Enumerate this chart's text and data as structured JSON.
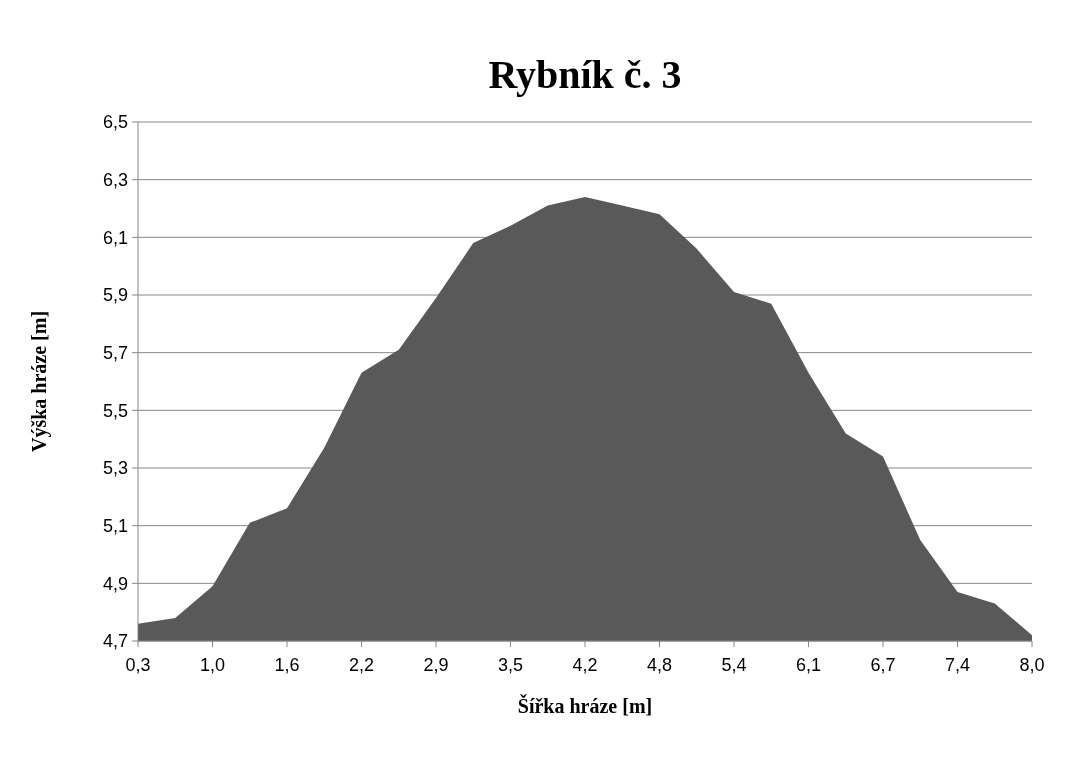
{
  "chart_data": {
    "type": "area",
    "title": "Rybník č. 3",
    "xlabel": "Šířka hráze [m]",
    "ylabel": "Výška hráze [m]",
    "categories": [
      "0,3",
      null,
      "1,0",
      null,
      "1,6",
      null,
      "2,2",
      null,
      "2,9",
      null,
      "3,5",
      null,
      "4,2",
      null,
      "4,8",
      null,
      "5,4",
      null,
      "6,1",
      null,
      "6,7",
      null,
      "7,4",
      null,
      "8,0"
    ],
    "series": [
      {
        "color": "#595959",
        "values": [
          4.76,
          4.78,
          4.89,
          5.11,
          5.16,
          5.37,
          5.63,
          5.71,
          5.89,
          6.08,
          6.14,
          6.21,
          6.24,
          6.21,
          6.18,
          6.06,
          5.91,
          5.87,
          5.63,
          5.42,
          5.34,
          5.05,
          4.87,
          4.83,
          4.72
        ]
      }
    ],
    "ylim": [
      4.7,
      6.5
    ],
    "yticks": [
      {
        "value": 4.7,
        "label": "4,7"
      },
      {
        "value": 4.9,
        "label": "4,9"
      },
      {
        "value": 5.1,
        "label": "5,1"
      },
      {
        "value": 5.3,
        "label": "5,3"
      },
      {
        "value": 5.5,
        "label": "5,5"
      },
      {
        "value": 5.7,
        "label": "5,7"
      },
      {
        "value": 5.9,
        "label": "5,9"
      },
      {
        "value": 6.1,
        "label": "6,1"
      },
      {
        "value": 6.3,
        "label": "6,3"
      },
      {
        "value": 6.5,
        "label": "6,5"
      }
    ],
    "grid": "y"
  }
}
